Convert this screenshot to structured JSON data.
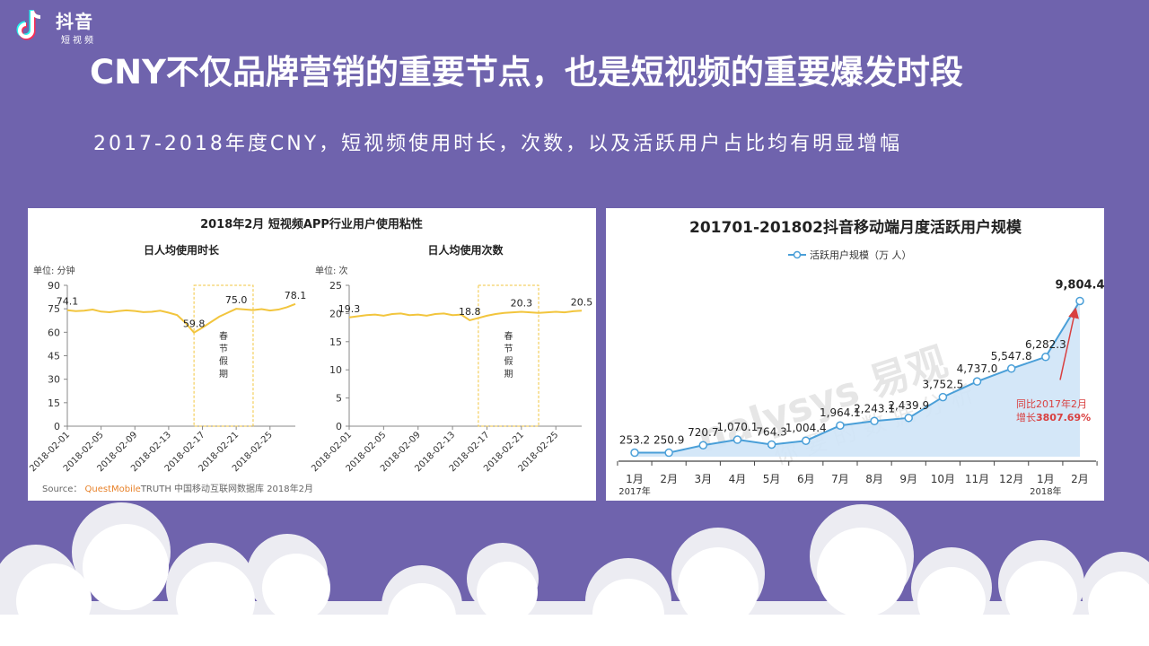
{
  "logo": {
    "name": "抖音",
    "sub": "短视频",
    "icon": "tiktok-note-icon"
  },
  "title": "CNY不仅品牌营销的重要节点，也是短视频的重要爆发时段",
  "subtitle": "2017-2018年度CNY，短视频使用时长，次数，以及活跃用户占比均有明显增幅",
  "colors": {
    "background": "#6f63ad",
    "line_yellow": "#f2c53d",
    "line_blue": "#4a9fd8",
    "area_blue": "#cfe4f7",
    "annotation_red": "#d94040",
    "source_orange": "#e8822a"
  },
  "chart_data": [
    {
      "type": "line",
      "title": "2018年2月 短视频APP行业用户使用粘性",
      "subtitle": "日人均使用时长",
      "unit_label": "单位: 分钟",
      "ylim": [
        0,
        90
      ],
      "yticks": [
        0,
        15,
        30,
        45,
        60,
        75,
        90
      ],
      "x_tick_labels": [
        "2018-02-01",
        "2018-02-05",
        "2018-02-09",
        "2018-02-13",
        "2018-02-17",
        "2018-02-21",
        "2018-02-25"
      ],
      "x_count": 28,
      "series": [
        {
          "values": [
            74.1,
            73.5,
            73.8,
            74.5,
            73.2,
            72.8,
            73.5,
            74.0,
            73.6,
            72.9,
            73.1,
            73.8,
            72.5,
            71.0,
            66.0,
            59.8,
            63.0,
            66.5,
            70.0,
            72.5,
            75.0,
            74.6,
            74.2,
            74.8,
            73.9,
            74.5,
            76.0,
            78.1
          ]
        }
      ],
      "data_labels": [
        {
          "x": 0,
          "y": 74.1,
          "text": "74.1"
        },
        {
          "x": 15,
          "y": 59.8,
          "text": "59.8"
        },
        {
          "x": 20,
          "y": 75.0,
          "text": "75.0"
        },
        {
          "x": 27,
          "y": 78.1,
          "text": "78.1"
        }
      ],
      "highlight": {
        "x_from": 15,
        "x_to": 22,
        "label": "春节假期"
      }
    },
    {
      "type": "line",
      "subtitle": "日人均使用次数",
      "unit_label": "单位: 次",
      "ylim": [
        0,
        25
      ],
      "yticks": [
        0,
        5,
        10,
        15,
        20,
        25
      ],
      "x_tick_labels": [
        "2018-02-01",
        "2018-02-05",
        "2018-02-09",
        "2018-02-13",
        "2018-02-17",
        "2018-02-21",
        "2018-02-25"
      ],
      "x_count": 28,
      "series": [
        {
          "values": [
            19.3,
            19.5,
            19.7,
            19.8,
            19.6,
            19.9,
            20.0,
            19.7,
            19.8,
            19.6,
            19.9,
            20.0,
            19.7,
            19.8,
            18.8,
            19.2,
            19.6,
            19.9,
            20.1,
            20.2,
            20.3,
            20.2,
            20.1,
            20.2,
            20.3,
            20.2,
            20.4,
            20.5
          ]
        }
      ],
      "data_labels": [
        {
          "x": 0,
          "y": 19.3,
          "text": "19.3"
        },
        {
          "x": 14,
          "y": 18.8,
          "text": "18.8"
        },
        {
          "x": 20,
          "y": 20.3,
          "text": "20.3"
        },
        {
          "x": 27,
          "y": 20.5,
          "text": "20.5"
        }
      ],
      "highlight": {
        "x_from": 15,
        "x_to": 22,
        "label": "春节假期"
      }
    },
    {
      "type": "area",
      "title": "201701-201802抖音移动端月度活跃用户规模",
      "legend": "活跃用户规模（万 人）",
      "categories": [
        "1月",
        "2月",
        "3月",
        "4月",
        "5月",
        "6月",
        "7月",
        "8月",
        "9月",
        "10月",
        "11月",
        "12月",
        "1月",
        "2月"
      ],
      "year_labels": [
        {
          "index": 0,
          "text": "2017年"
        },
        {
          "index": 12,
          "text": "2018年"
        }
      ],
      "values": [
        253.2,
        250.9,
        720.7,
        1070.1,
        764.3,
        1004.4,
        1964.1,
        2243.1,
        2439.9,
        3752.5,
        4737.0,
        5547.8,
        6282.3,
        9804.4
      ],
      "labels": [
        "253.2",
        "250.9",
        "720.7",
        "1,070.1",
        "764.3",
        "1,004.4",
        "1,964.1",
        "2,243.1",
        "2,439.9",
        "3,752.5",
        "4,737.0",
        "5,547.8",
        "6,282.3",
        "9,804.4"
      ],
      "ylim": [
        0,
        10000
      ],
      "annotation": {
        "line1": "同比2017年2月",
        "line2a": "增长",
        "line2b": "3807.69%"
      },
      "watermark": {
        "brand": "nalysys 易观",
        "slogan": "你 要 的 数 据 分 析"
      }
    }
  ],
  "source": {
    "prefix": "Source：",
    "brand": "QuestMobile",
    "text": "TRUTH 中国移动互联网数据库 2018年2月"
  }
}
